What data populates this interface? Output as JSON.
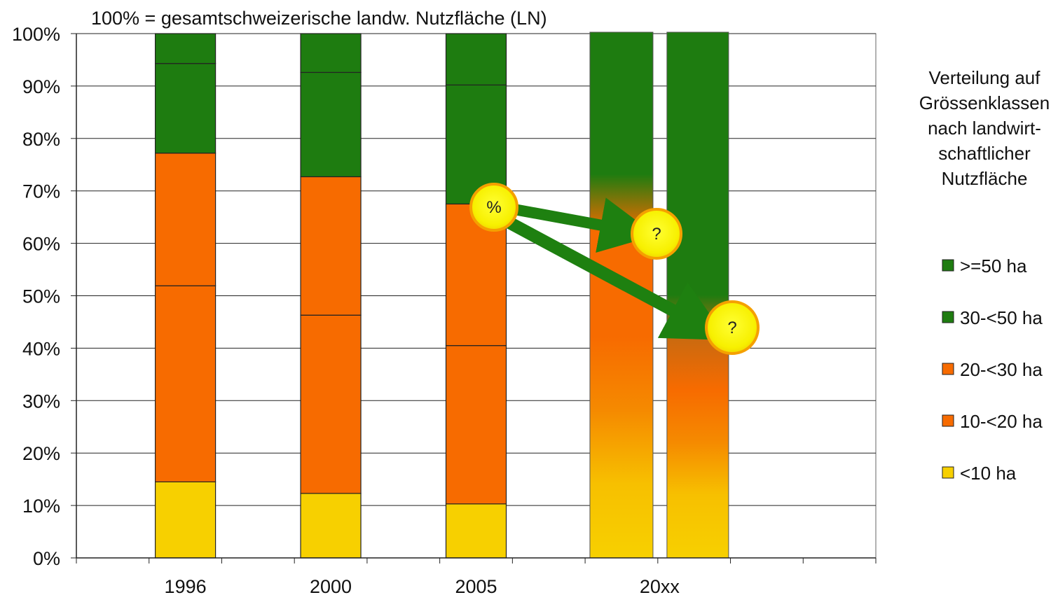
{
  "chart_data": {
    "type": "bar",
    "stacked": true,
    "title": "100% = gesamtschweizerische landw. Nutzfläche (LN)",
    "categories": [
      "1996",
      "2000",
      "2005"
    ],
    "future_category": "20xx",
    "ylim": [
      0,
      100
    ],
    "y_ticks": [
      "0%",
      "10%",
      "20%",
      "30%",
      "40%",
      "50%",
      "60%",
      "70%",
      "80%",
      "90%",
      "100%"
    ],
    "grid": true,
    "legend_position": "right",
    "legend_title": "Verteilung auf Grössenklassen nach landwirt-schaftlicher Nutzfläche",
    "legend_title_lines": [
      "Verteilung auf",
      "Grössenklassen",
      "nach landwirt-",
      "schaftlicher",
      "Nutzfläche"
    ],
    "series": [
      {
        "name": "<10 ha",
        "color": "#f7d000",
        "values": [
          14.5,
          12.3,
          10.3
        ]
      },
      {
        "name": "10-<20 ha",
        "color": "#f76b00",
        "values": [
          37.4,
          34.0,
          30.2
        ]
      },
      {
        "name": "20-<30 ha",
        "color": "#f76b00",
        "values": [
          25.3,
          26.4,
          27.0
        ]
      },
      {
        "name": "30-<50 ha",
        "color": "#1e7c10",
        "values": [
          17.1,
          19.9,
          22.7
        ]
      },
      {
        "name": ">=50 ha",
        "color": "#1e7c10",
        "values": [
          5.7,
          7.4,
          9.8
        ]
      }
    ],
    "legend_order": [
      ">=50 ha",
      "30-<50 ha",
      "20-<30 ha",
      "10-<20 ha",
      "<10 ha"
    ],
    "annotations": {
      "source_label": "%",
      "target_labels": [
        "?",
        "?"
      ]
    }
  }
}
